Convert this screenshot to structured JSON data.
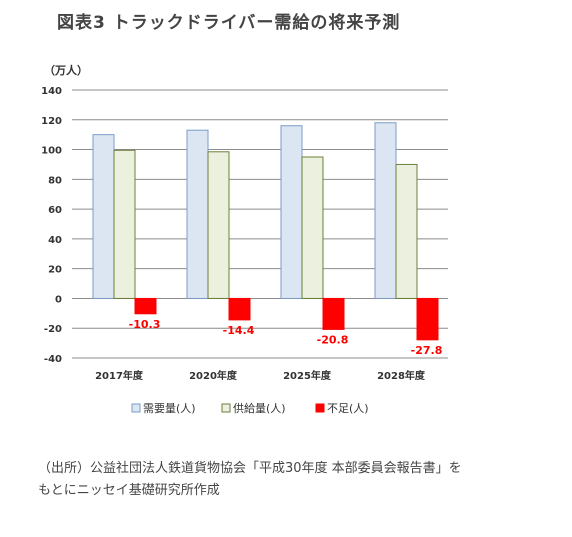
{
  "title": "図表3 トラックドライバー需給の将来予測",
  "source": {
    "line1": "（出所）公益社団法人鉄道貨物協会「平成30年度 本部委員会報告書」を",
    "line2": "もとにニッセイ基礎研究所作成"
  },
  "chart_data": {
    "type": "bar",
    "unit_label": "（万人）",
    "categories": [
      "2017年度",
      "2020年度",
      "2025年度",
      "2028年度"
    ],
    "series": [
      {
        "name": "需要量(人)",
        "values": [
          110,
          113,
          116,
          118
        ],
        "color": "#dce6f2",
        "stroke": "#7b9cc8"
      },
      {
        "name": "供給量(人)",
        "values": [
          99.5,
          98.5,
          95,
          90
        ],
        "color": "#ebf1de",
        "stroke": "#6b7f3a"
      },
      {
        "name": "不足(人)",
        "values": [
          -10.3,
          -14.4,
          -20.8,
          -27.8
        ],
        "color": "#ff0000",
        "stroke": "#ff0000"
      }
    ],
    "data_labels": [
      "-10.3",
      "-14.4",
      "-20.8",
      "-27.8"
    ],
    "yticks": [
      140,
      120,
      100,
      80,
      60,
      40,
      20,
      0,
      -20,
      -40
    ],
    "ylim": [
      -40,
      140
    ],
    "grid": true,
    "legend": "bottom",
    "label_color": "#ff0000"
  }
}
